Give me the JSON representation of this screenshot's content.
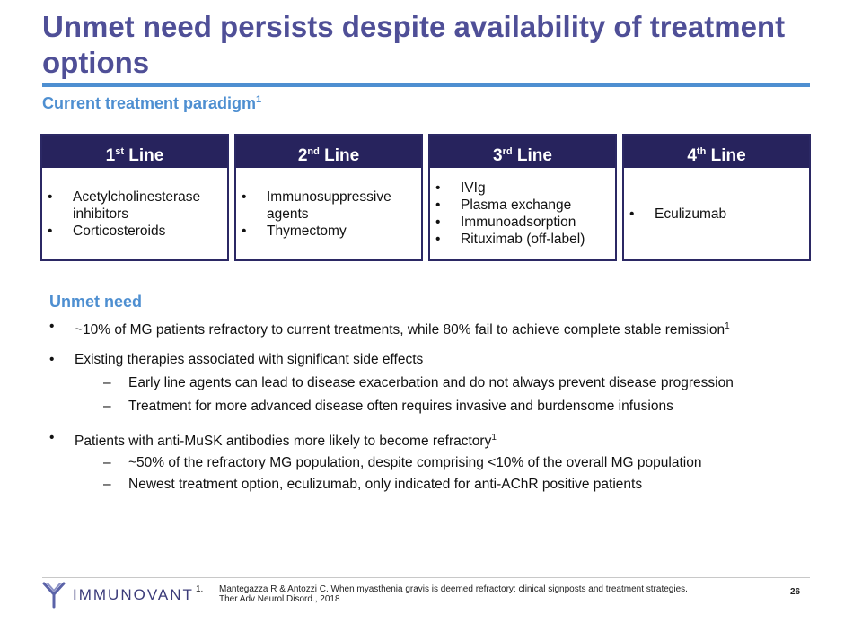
{
  "title": "Unmet need persists despite availability of treatment options",
  "subtitle": {
    "text": "Current treatment paradigm",
    "sup": "1"
  },
  "lines": [
    {
      "num": "1",
      "sup": "st",
      "label": "Line",
      "items": [
        "Acetylcholinesterase inhibitors",
        "Corticosteroids"
      ]
    },
    {
      "num": "2",
      "sup": "nd",
      "label": "Line",
      "items": [
        "Immunosuppressive agents",
        "Thymectomy"
      ]
    },
    {
      "num": "3",
      "sup": "rd",
      "label": "Line",
      "items": [
        "IVIg",
        "Plasma exchange",
        "Immunoadsorption",
        "Rituximab (off-label)"
      ]
    },
    {
      "num": "4",
      "sup": "th",
      "label": "Line",
      "items": [
        "Eculizumab"
      ]
    }
  ],
  "unmet": {
    "heading": "Unmet need",
    "p1": "~10% of MG patients refractory to current treatments, while 80% fail to achieve complete stable remission",
    "p1_sup": "1",
    "p2": "Existing therapies associated with significant side effects",
    "p2_sub1": "Early line agents can lead to disease exacerbation and do not always prevent disease progression",
    "p2_sub2": "Treatment for more advanced disease often requires invasive and burdensome infusions",
    "p3": "Patients with anti-MuSK antibodies more likely to become refractory",
    "p3_sup": "1",
    "p3_sub1": "~50% of the refractory MG population, despite comprising <10% of the overall MG population",
    "p3_sub2": "Newest treatment option, eculizumab, only indicated for anti-AChR positive patients"
  },
  "footer": {
    "logo_text": "IMMUNOVANT",
    "footnote_num": "1.",
    "footnote": "Mantegazza R & Antozzi C. When myasthenia gravis is deemed refractory: clinical signposts and treatment strategies. Ther Adv Neurol Disord., 2018",
    "page": "26"
  },
  "colors": {
    "title": "#4f4f97",
    "accent": "#4e8fd1",
    "header_bg": "#27235d"
  }
}
